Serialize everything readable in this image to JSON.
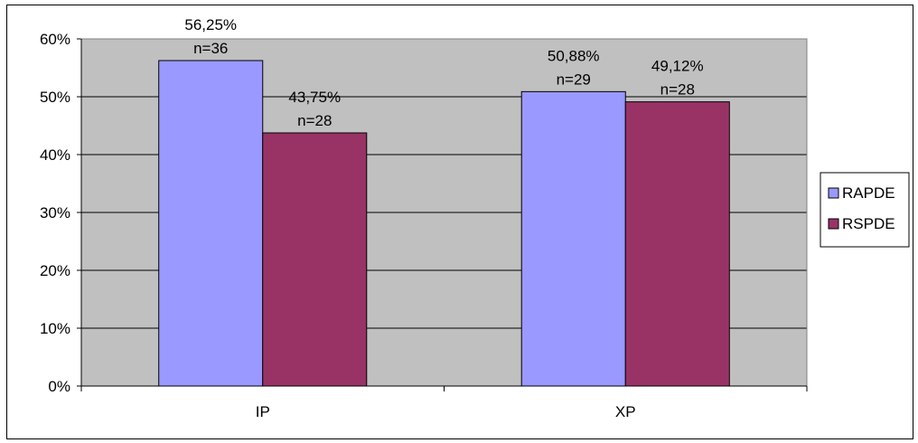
{
  "chart_data": {
    "type": "bar",
    "categories": [
      "IP",
      "XP"
    ],
    "series": [
      {
        "name": "RAPDE",
        "color": "#9999FF",
        "values": [
          56.25,
          50.88
        ],
        "labels": [
          "56,25%",
          "50,88%"
        ],
        "counts": [
          "n=36",
          "n=29"
        ]
      },
      {
        "name": "RSPDE",
        "color": "#993366",
        "values": [
          43.75,
          49.12
        ],
        "labels": [
          "43,75%",
          "49,12%"
        ],
        "counts": [
          "n=28",
          "n=28"
        ]
      }
    ],
    "ylim": [
      0,
      60
    ],
    "yticks": [
      0,
      10,
      20,
      30,
      40,
      50,
      60
    ],
    "ytick_labels": [
      "0%",
      "10%",
      "20%",
      "30%",
      "40%",
      "50%",
      "60%"
    ],
    "grid": true,
    "plot_background": "#C0C0C0",
    "legend": "right"
  }
}
